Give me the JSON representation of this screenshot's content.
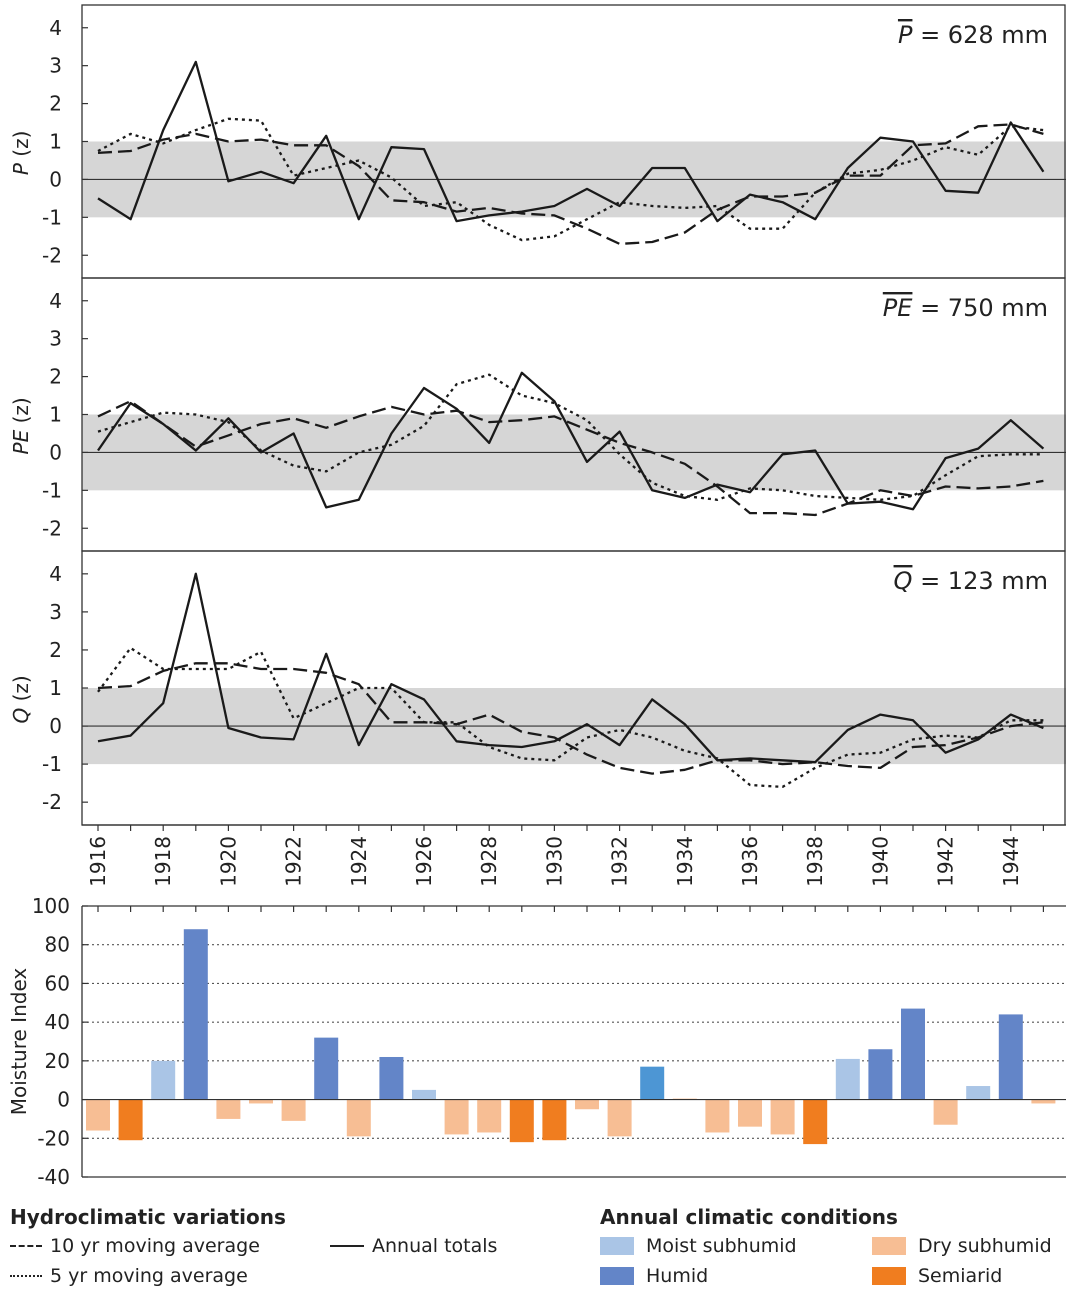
{
  "chart_data": [
    {
      "type": "line",
      "ylabel": "P (z)",
      "ylabel_letter": "P",
      "ylabel_unit": " (z)",
      "annotation_symbol": "P",
      "annotation_value": " = 628 mm",
      "ylim": [
        -2.6,
        4.6
      ],
      "yticks": [
        "4",
        "3",
        "2",
        "1",
        "0",
        "-1",
        "-2"
      ],
      "band": [
        -1,
        1
      ],
      "x": [
        1916,
        1917,
        1918,
        1919,
        1920,
        1921,
        1922,
        1923,
        1924,
        1925,
        1926,
        1927,
        1928,
        1929,
        1930,
        1931,
        1932,
        1933,
        1934,
        1935,
        1936,
        1937,
        1938,
        1939,
        1940,
        1941,
        1942,
        1943,
        1944,
        1945
      ],
      "series": [
        {
          "name": "Annual totals",
          "style": "solid",
          "values": [
            -0.5,
            -1.05,
            1.3,
            3.1,
            -0.05,
            0.2,
            -0.1,
            1.15,
            -1.05,
            0.85,
            0.8,
            -1.1,
            -0.95,
            -0.85,
            -0.7,
            -0.25,
            -0.7,
            0.3,
            0.3,
            -1.1,
            -0.4,
            -0.6,
            -1.05,
            0.3,
            1.1,
            1.0,
            -0.3,
            -0.35,
            1.5,
            0.2
          ]
        },
        {
          "name": "10 yr moving average",
          "style": "dashed",
          "values": [
            0.7,
            0.75,
            1.05,
            1.2,
            1.0,
            1.05,
            0.9,
            0.9,
            0.35,
            -0.55,
            -0.6,
            -0.85,
            -0.75,
            -0.9,
            -0.95,
            -1.3,
            -1.7,
            -1.65,
            -1.4,
            -0.8,
            -0.45,
            -0.45,
            -0.35,
            0.1,
            0.1,
            0.9,
            0.95,
            1.4,
            1.45,
            1.2
          ]
        },
        {
          "name": "5 yr moving average",
          "style": "dotted",
          "values": [
            0.75,
            1.2,
            0.95,
            1.3,
            1.6,
            1.55,
            0.1,
            0.3,
            0.5,
            0.05,
            -0.7,
            -0.6,
            -1.2,
            -1.6,
            -1.5,
            -1.05,
            -0.6,
            -0.7,
            -0.75,
            -0.7,
            -1.3,
            -1.3,
            -0.35,
            0.15,
            0.25,
            0.5,
            0.85,
            0.65,
            1.4,
            1.3
          ]
        }
      ]
    },
    {
      "type": "line",
      "ylabel": "PE (z)",
      "ylabel_letter": "PE",
      "ylabel_unit": " (z)",
      "annotation_symbol": "PE",
      "annotation_value": " = 750 mm",
      "ylim": [
        -2.6,
        4.6
      ],
      "yticks": [
        "4",
        "3",
        "2",
        "1",
        "0",
        "-1",
        "-2"
      ],
      "band": [
        -1,
        1
      ],
      "x": [
        1916,
        1917,
        1918,
        1919,
        1920,
        1921,
        1922,
        1923,
        1924,
        1925,
        1926,
        1927,
        1928,
        1929,
        1930,
        1931,
        1932,
        1933,
        1934,
        1935,
        1936,
        1937,
        1938,
        1939,
        1940,
        1941,
        1942,
        1943,
        1944,
        1945
      ],
      "series": [
        {
          "name": "Annual totals",
          "style": "solid",
          "values": [
            0.05,
            1.3,
            0.75,
            0.05,
            0.9,
            0.0,
            0.5,
            -1.45,
            -1.25,
            0.5,
            1.7,
            1.15,
            0.25,
            2.1,
            1.35,
            -0.25,
            0.55,
            -1.0,
            -1.2,
            -0.85,
            -1.05,
            -0.05,
            0.05,
            -1.35,
            -1.3,
            -1.5,
            -0.15,
            0.1,
            0.85,
            0.1
          ]
        },
        {
          "name": "10 yr moving average",
          "style": "dashed",
          "values": [
            0.95,
            1.35,
            0.75,
            0.15,
            0.45,
            0.75,
            0.9,
            0.65,
            0.95,
            1.2,
            1.0,
            1.1,
            0.8,
            0.85,
            0.95,
            0.6,
            0.25,
            0.0,
            -0.3,
            -0.9,
            -1.6,
            -1.6,
            -1.65,
            -1.35,
            -1.0,
            -1.15,
            -0.9,
            -0.95,
            -0.9,
            -0.75
          ]
        },
        {
          "name": "5 yr moving average",
          "style": "dotted",
          "values": [
            0.55,
            0.8,
            1.05,
            1.0,
            0.8,
            0.05,
            -0.35,
            -0.5,
            0.0,
            0.2,
            0.7,
            1.8,
            2.05,
            1.5,
            1.3,
            0.85,
            -0.05,
            -0.8,
            -1.15,
            -1.25,
            -0.95,
            -1.0,
            -1.15,
            -1.2,
            -1.25,
            -1.15,
            -0.6,
            -0.1,
            -0.05,
            -0.05
          ]
        }
      ]
    },
    {
      "type": "line",
      "ylabel": "Q (z)",
      "ylabel_letter": "Q",
      "ylabel_unit": " (z)",
      "annotation_symbol": "Q",
      "annotation_value": " = 123 mm",
      "ylim": [
        -2.6,
        4.6
      ],
      "yticks": [
        "4",
        "3",
        "2",
        "1",
        "0",
        "-1",
        "-2"
      ],
      "band": [
        -1,
        1
      ],
      "x": [
        1916,
        1917,
        1918,
        1919,
        1920,
        1921,
        1922,
        1923,
        1924,
        1925,
        1926,
        1927,
        1928,
        1929,
        1930,
        1931,
        1932,
        1933,
        1934,
        1935,
        1936,
        1937,
        1938,
        1939,
        1940,
        1941,
        1942,
        1943,
        1944,
        1945
      ],
      "series": [
        {
          "name": "Annual totals",
          "style": "solid",
          "values": [
            -0.4,
            -0.25,
            0.6,
            4.0,
            -0.05,
            -0.3,
            -0.35,
            1.9,
            -0.5,
            1.1,
            0.7,
            -0.4,
            -0.5,
            -0.55,
            -0.4,
            0.05,
            -0.5,
            0.7,
            0.05,
            -0.9,
            -0.85,
            -0.9,
            -0.95,
            -0.1,
            0.3,
            0.15,
            -0.7,
            -0.35,
            0.3,
            -0.05
          ]
        },
        {
          "name": "10 yr moving average",
          "style": "dashed",
          "values": [
            1.0,
            1.05,
            1.45,
            1.65,
            1.65,
            1.5,
            1.5,
            1.4,
            1.1,
            0.1,
            0.1,
            0.05,
            0.3,
            -0.15,
            -0.3,
            -0.75,
            -1.1,
            -1.25,
            -1.15,
            -0.9,
            -0.9,
            -1.0,
            -0.95,
            -1.05,
            -1.1,
            -0.55,
            -0.5,
            -0.3,
            0.0,
            0.1
          ]
        },
        {
          "name": "5 yr moving average",
          "style": "dotted",
          "values": [
            0.9,
            2.05,
            1.5,
            1.5,
            1.5,
            1.95,
            0.2,
            0.6,
            1.0,
            1.0,
            0.1,
            0.1,
            -0.55,
            -0.85,
            -0.9,
            -0.3,
            -0.1,
            -0.3,
            -0.65,
            -0.85,
            -1.55,
            -1.6,
            -1.1,
            -0.75,
            -0.7,
            -0.35,
            -0.25,
            -0.3,
            0.15,
            0.15
          ]
        }
      ]
    },
    {
      "type": "bar",
      "ylabel": "Moisture Index",
      "ylim": [
        -40,
        100
      ],
      "yticks": [
        "100",
        "80",
        "60",
        "40",
        "20",
        "0",
        "-20",
        "-40"
      ],
      "categories": [
        1916,
        1917,
        1918,
        1919,
        1920,
        1921,
        1922,
        1923,
        1924,
        1925,
        1926,
        1927,
        1928,
        1929,
        1930,
        1931,
        1932,
        1933,
        1934,
        1935,
        1936,
        1937,
        1938,
        1939,
        1940,
        1941,
        1942,
        1943,
        1944,
        1945
      ],
      "values": [
        -16,
        -21,
        20,
        88,
        -10,
        -2,
        -11,
        32,
        -19,
        22,
        5,
        -18,
        -17,
        -22,
        -21,
        -5,
        -19,
        17,
        0.5,
        -17,
        -14,
        -18,
        -23,
        21,
        26,
        47,
        -13,
        7,
        44,
        -2
      ],
      "classes": [
        "dry",
        "semi",
        "moist",
        "humid",
        "dry",
        "dry",
        "dry",
        "humid",
        "dry",
        "humid",
        "moist",
        "dry",
        "dry",
        "semi",
        "semi",
        "dry",
        "dry",
        "humid2",
        "dry",
        "dry",
        "dry",
        "dry",
        "semi",
        "moist",
        "humid",
        "humid",
        "dry",
        "moist",
        "humid",
        "dry"
      ],
      "class_colors": {
        "moist": "#aac5e6",
        "humid": "#6385c8",
        "humid2": "#4d96d4",
        "dry": "#f7be94",
        "semi": "#f07d1f"
      }
    }
  ],
  "x_tick_labels": [
    "1916",
    "1918",
    "1920",
    "1922",
    "1924",
    "1926",
    "1928",
    "1930",
    "1932",
    "1934",
    "1936",
    "1938",
    "1940",
    "1942",
    "1944"
  ],
  "legend": {
    "hydro_title": "Hydroclimatic variations",
    "ten_yr": "10 yr moving average",
    "five_yr": "5 yr moving average",
    "annual": "Annual totals",
    "annual_title": "Annual climatic conditions",
    "moist": "Moist subhumid",
    "humid": "Humid",
    "dry": "Dry subhumid",
    "semiarid": "Semiarid",
    "colors": {
      "band": "#d6d6d6",
      "moist": "#aac5e6",
      "humid": "#6385c8",
      "dry": "#f7be94",
      "semi": "#f07d1f"
    }
  }
}
